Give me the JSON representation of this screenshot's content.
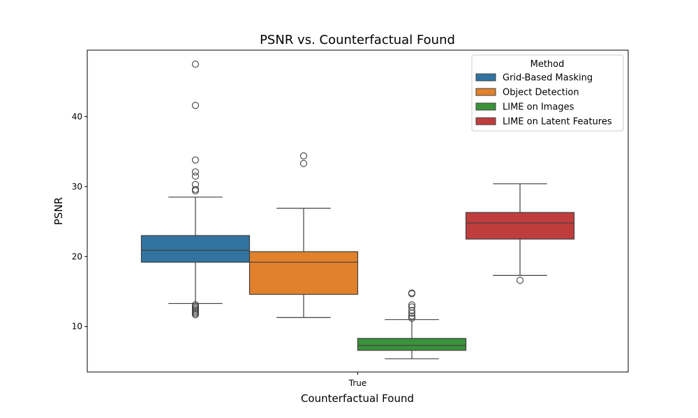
{
  "chart_data": {
    "type": "box",
    "title": "PSNR vs. Counterfactual Found",
    "xlabel": "Counterfactual Found",
    "ylabel": "PSNR",
    "categories": [
      "True"
    ],
    "ylim": [
      3.5,
      49.5
    ],
    "yticks": [
      10,
      20,
      30,
      40
    ],
    "legend": {
      "title": "Method",
      "position": "top-right"
    },
    "series": [
      {
        "name": "Grid-Based Masking",
        "color": "#3274a1",
        "whisker_low": 13.3,
        "q1": 19.2,
        "median": 20.9,
        "q3": 23.0,
        "whisker_high": 28.5,
        "outliers": [
          11.7,
          11.9,
          12.1,
          12.3,
          12.5,
          12.7,
          12.9,
          13.1,
          29.4,
          29.6,
          30.3,
          31.5,
          32.1,
          33.8,
          41.6,
          47.5
        ]
      },
      {
        "name": "Object Detection",
        "color": "#e1812c",
        "whisker_low": 11.3,
        "q1": 14.6,
        "median": 19.2,
        "q3": 20.7,
        "whisker_high": 26.9,
        "outliers": [
          33.3,
          34.4
        ]
      },
      {
        "name": "LIME on Images",
        "color": "#3a923a",
        "whisker_low": 5.4,
        "q1": 6.6,
        "median": 7.3,
        "q3": 8.3,
        "whisker_high": 11.0,
        "outliers": [
          11.2,
          11.5,
          11.9,
          12.3,
          12.8,
          13.1,
          14.7,
          14.8
        ]
      },
      {
        "name": "LIME on Latent Features",
        "color": "#c03d3e",
        "whisker_low": 17.3,
        "q1": 22.5,
        "median": 24.8,
        "q3": 26.3,
        "whisker_high": 30.4,
        "outliers": [
          16.6
        ]
      }
    ]
  }
}
